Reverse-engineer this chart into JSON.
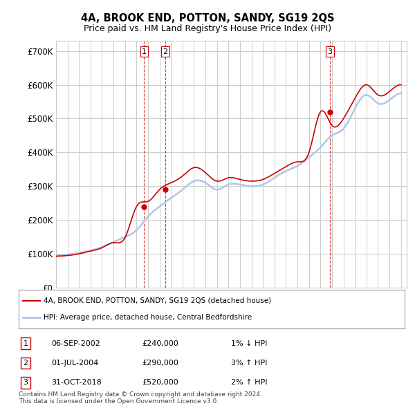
{
  "title": "4A, BROOK END, POTTON, SANDY, SG19 2QS",
  "subtitle": "Price paid vs. HM Land Registry's House Price Index (HPI)",
  "ylabel_ticks": [
    "£0",
    "£100K",
    "£200K",
    "£300K",
    "£400K",
    "£500K",
    "£600K",
    "£700K"
  ],
  "ytick_values": [
    0,
    100000,
    200000,
    300000,
    400000,
    500000,
    600000,
    700000
  ],
  "ylim": [
    0,
    730000
  ],
  "xlim_start": 1995.0,
  "xlim_end": 2025.5,
  "sale_dates": [
    2002.67,
    2004.5,
    2018.83
  ],
  "sale_prices": [
    240000,
    290000,
    520000
  ],
  "sale_labels": [
    "1",
    "2",
    "3"
  ],
  "hpi_line_color": "#aec6e8",
  "sale_line_color": "#cc0000",
  "sale_dot_color": "#cc0000",
  "vline_color": "#cc0000",
  "grid_color": "#cccccc",
  "bg_color": "#ffffff",
  "legend_entries": [
    "4A, BROOK END, POTTON, SANDY, SG19 2QS (detached house)",
    "HPI: Average price, detached house, Central Bedfordshire"
  ],
  "table_rows": [
    {
      "label": "1",
      "date": "06-SEP-2002",
      "price": "£240,000",
      "hpi": "1% ↓ HPI"
    },
    {
      "label": "2",
      "date": "01-JUL-2004",
      "price": "£290,000",
      "hpi": "3% ↑ HPI"
    },
    {
      "label": "3",
      "date": "31-OCT-2018",
      "price": "£520,000",
      "hpi": "2% ↑ HPI"
    }
  ],
  "footer": "Contains HM Land Registry data © Crown copyright and database right 2024.\nThis data is licensed under the Open Government Licence v3.0.",
  "hpi_years": [
    1995,
    1996,
    1997,
    1998,
    1999,
    2000,
    2001,
    2002,
    2003,
    2004,
    2005,
    2006,
    2007,
    2008,
    2009,
    2010,
    2011,
    2012,
    2013,
    2014,
    2015,
    2016,
    2017,
    2018,
    2019,
    2020,
    2021,
    2022,
    2023,
    2024,
    2025
  ],
  "hpi_values": [
    95000,
    98000,
    103000,
    110000,
    120000,
    135000,
    150000,
    170000,
    210000,
    240000,
    265000,
    290000,
    315000,
    310000,
    290000,
    305000,
    305000,
    300000,
    305000,
    325000,
    345000,
    360000,
    385000,
    415000,
    450000,
    470000,
    530000,
    570000,
    545000,
    555000,
    575000
  ],
  "price_years": [
    1995,
    1996,
    1997,
    1998,
    1999,
    2000,
    2001,
    2002,
    2003,
    2004,
    2005,
    2006,
    2007,
    2008,
    2009,
    2010,
    2011,
    2012,
    2013,
    2014,
    2015,
    2016,
    2017,
    2018,
    2019,
    2020,
    2021,
    2022,
    2023,
    2024,
    2025
  ],
  "price_values": [
    93000,
    95000,
    100000,
    108000,
    118000,
    133000,
    148000,
    240000,
    255000,
    290000,
    310000,
    330000,
    355000,
    340000,
    315000,
    325000,
    320000,
    315000,
    320000,
    338000,
    358000,
    372000,
    400000,
    520000,
    480000,
    500000,
    560000,
    600000,
    570000,
    580000,
    600000
  ]
}
